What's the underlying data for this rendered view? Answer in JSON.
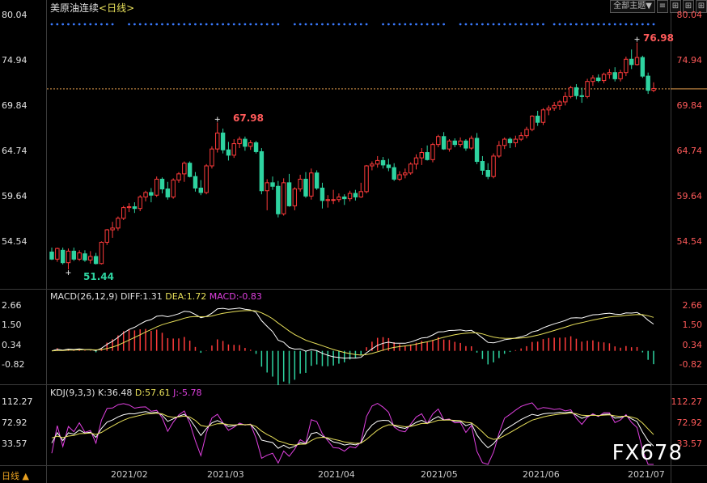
{
  "header": {
    "symbol": "美原油连续",
    "period": "<日线>",
    "toolbar_theme": "全部主题▼",
    "toolbar_icons": [
      "list-icon",
      "grid-icon",
      "grid-icon",
      "grid-icon"
    ]
  },
  "footer": {
    "period_button": "日线 ▲",
    "watermark": "FX678"
  },
  "colors": {
    "up": "#ff3b3b",
    "down": "#2ed3a0",
    "price_line": "#e8a050",
    "dots": "#3a7aff",
    "diff": "#ffffff",
    "dea": "#e8e05a",
    "k": "#ffffff",
    "d": "#e8e05a",
    "j": "#e040e0"
  },
  "chart_data": [
    {
      "type": "candlestick",
      "title": "美原油连续<日线>",
      "y_ticks": [
        "80.04",
        "74.94",
        "69.84",
        "64.74",
        "59.64",
        "54.54"
      ],
      "ylim": [
        50.5,
        80.04
      ],
      "x_ticks": [
        "2021/02",
        "2021/03",
        "2021/04",
        "2021/05",
        "2021/06",
        "2021/07"
      ],
      "current_price": 71.76,
      "annotations": [
        {
          "label": "51.44",
          "type": "low"
        },
        {
          "label": "67.98",
          "type": "high"
        },
        {
          "label": "76.98",
          "type": "high"
        }
      ],
      "candles": [
        [
          53.4,
          53.9,
          52.5,
          52.6
        ],
        [
          52.6,
          53.9,
          52.3,
          53.8
        ],
        [
          53.6,
          53.9,
          52.0,
          52.2
        ],
        [
          52.2,
          53.8,
          51.44,
          53.5
        ],
        [
          53.5,
          53.9,
          52.4,
          52.6
        ],
        [
          52.6,
          53.6,
          52.4,
          53.3
        ],
        [
          53.2,
          53.6,
          52.3,
          52.5
        ],
        [
          52.5,
          53.5,
          52.1,
          52.9
        ],
        [
          52.9,
          53.3,
          52.0,
          52.1
        ],
        [
          52.1,
          54.6,
          52.0,
          54.5
        ],
        [
          54.5,
          56.0,
          54.2,
          55.9
        ],
        [
          55.9,
          56.8,
          55.0,
          56.1
        ],
        [
          56.1,
          57.4,
          55.8,
          57.2
        ],
        [
          57.2,
          58.6,
          57.0,
          58.4
        ],
        [
          58.4,
          58.9,
          57.9,
          58.5
        ],
        [
          58.5,
          59.0,
          57.8,
          58.3
        ],
        [
          58.3,
          59.8,
          58.0,
          59.6
        ],
        [
          59.6,
          60.3,
          59.1,
          60.1
        ],
        [
          60.1,
          60.6,
          59.0,
          59.8
        ],
        [
          59.8,
          61.9,
          59.6,
          61.6
        ],
        [
          61.6,
          61.8,
          60.0,
          60.5
        ],
        [
          60.5,
          61.3,
          59.3,
          59.6
        ],
        [
          59.6,
          61.7,
          59.4,
          61.5
        ],
        [
          61.5,
          62.4,
          61.2,
          62.2
        ],
        [
          62.2,
          63.6,
          61.3,
          63.4
        ],
        [
          63.4,
          63.6,
          61.8,
          61.9
        ],
        [
          61.9,
          62.4,
          60.2,
          60.6
        ],
        [
          60.6,
          61.5,
          59.8,
          60.1
        ],
        [
          60.1,
          63.3,
          59.9,
          63.1
        ],
        [
          63.1,
          65.3,
          62.8,
          65.0
        ],
        [
          65.0,
          67.98,
          64.6,
          66.8
        ],
        [
          66.8,
          67.3,
          64.5,
          64.9
        ],
        [
          64.9,
          65.8,
          63.7,
          64.3
        ],
        [
          64.3,
          66.1,
          64.0,
          65.6
        ],
        [
          65.6,
          66.4,
          65.1,
          66.1
        ],
        [
          66.1,
          66.4,
          64.8,
          65.3
        ],
        [
          65.3,
          66.0,
          64.9,
          65.7
        ],
        [
          65.7,
          65.9,
          64.5,
          64.7
        ],
        [
          64.7,
          65.1,
          59.9,
          60.3
        ],
        [
          60.3,
          61.6,
          58.1,
          61.2
        ],
        [
          61.2,
          61.9,
          60.4,
          60.8
        ],
        [
          60.8,
          61.4,
          57.3,
          57.7
        ],
        [
          57.7,
          61.7,
          57.5,
          61.2
        ],
        [
          61.2,
          62.2,
          58.5,
          58.6
        ],
        [
          58.6,
          60.7,
          58.1,
          60.5
        ],
        [
          60.5,
          62.1,
          60.2,
          61.6
        ],
        [
          61.6,
          62.4,
          59.5,
          59.7
        ],
        [
          59.7,
          62.8,
          59.3,
          62.3
        ],
        [
          62.3,
          62.6,
          60.4,
          60.6
        ],
        [
          60.6,
          61.2,
          58.3,
          59.2
        ],
        [
          59.2,
          59.8,
          58.4,
          59.3
        ],
        [
          59.3,
          60.4,
          58.8,
          59.3
        ],
        [
          59.3,
          60.0,
          59.0,
          59.6
        ],
        [
          59.6,
          59.9,
          58.7,
          59.4
        ],
        [
          59.4,
          60.3,
          59.1,
          60.0
        ],
        [
          60.0,
          60.4,
          59.2,
          59.6
        ],
        [
          59.6,
          61.2,
          59.5,
          60.2
        ],
        [
          60.2,
          63.2,
          60.0,
          63.1
        ],
        [
          63.1,
          63.6,
          62.6,
          63.3
        ],
        [
          63.3,
          64.2,
          62.9,
          63.7
        ],
        [
          63.7,
          64.1,
          62.8,
          63.2
        ],
        [
          63.2,
          63.9,
          62.5,
          62.9
        ],
        [
          62.9,
          63.4,
          61.4,
          61.6
        ],
        [
          61.6,
          62.5,
          61.4,
          62.1
        ],
        [
          62.1,
          62.8,
          61.7,
          62.3
        ],
        [
          62.3,
          63.5,
          62.1,
          63.3
        ],
        [
          63.3,
          64.4,
          62.7,
          64.0
        ],
        [
          64.0,
          65.1,
          63.2,
          64.6
        ],
        [
          64.6,
          65.4,
          63.7,
          63.8
        ],
        [
          63.8,
          65.7,
          63.5,
          65.5
        ],
        [
          65.5,
          66.6,
          65.2,
          66.4
        ],
        [
          66.4,
          66.9,
          64.9,
          65.0
        ],
        [
          65.0,
          66.1,
          64.7,
          65.9
        ],
        [
          65.9,
          66.2,
          65.2,
          65.5
        ],
        [
          65.5,
          66.3,
          65.2,
          65.9
        ],
        [
          65.9,
          66.1,
          64.8,
          65.1
        ],
        [
          65.1,
          66.5,
          64.9,
          66.2
        ],
        [
          66.2,
          66.8,
          63.3,
          63.6
        ],
        [
          63.6,
          64.2,
          62.1,
          62.6
        ],
        [
          62.6,
          63.4,
          61.6,
          61.9
        ],
        [
          61.9,
          64.5,
          61.7,
          64.2
        ],
        [
          64.2,
          65.9,
          64.0,
          65.4
        ],
        [
          65.4,
          66.3,
          65.0,
          66.1
        ],
        [
          66.1,
          66.3,
          65.1,
          65.7
        ],
        [
          65.7,
          66.5,
          65.2,
          66.1
        ],
        [
          66.1,
          66.9,
          65.9,
          66.5
        ],
        [
          66.5,
          67.5,
          66.2,
          67.2
        ],
        [
          67.2,
          68.8,
          67.0,
          68.7
        ],
        [
          68.7,
          69.3,
          67.6,
          68.0
        ],
        [
          68.0,
          69.6,
          67.7,
          69.4
        ],
        [
          69.4,
          69.9,
          68.8,
          69.6
        ],
        [
          69.6,
          70.3,
          69.3,
          69.9
        ],
        [
          69.9,
          70.5,
          69.4,
          70.3
        ],
        [
          70.3,
          71.4,
          69.9,
          70.9
        ],
        [
          70.9,
          72.1,
          70.7,
          71.9
        ],
        [
          71.9,
          72.3,
          70.6,
          71.0
        ],
        [
          71.0,
          71.9,
          70.2,
          70.9
        ],
        [
          70.9,
          72.9,
          70.7,
          72.6
        ],
        [
          72.6,
          73.3,
          72.1,
          73.0
        ],
        [
          73.0,
          73.4,
          72.5,
          72.7
        ],
        [
          72.7,
          73.6,
          72.4,
          73.4
        ],
        [
          73.4,
          74.0,
          72.9,
          73.6
        ],
        [
          73.6,
          74.2,
          72.6,
          72.9
        ],
        [
          72.9,
          73.9,
          72.6,
          73.6
        ],
        [
          73.6,
          75.4,
          73.2,
          75.1
        ],
        [
          75.1,
          76.2,
          74.0,
          74.5
        ],
        [
          74.5,
          76.98,
          74.4,
          75.3
        ],
        [
          75.3,
          75.5,
          73.0,
          73.2
        ],
        [
          73.2,
          73.6,
          71.2,
          71.6
        ],
        [
          71.6,
          72.5,
          71.4,
          71.8
        ]
      ]
    },
    {
      "type": "line",
      "title": "MACD(26,12,9)",
      "legend": {
        "diff": "DIFF:1.31",
        "dea": "DEA:1.72",
        "macd": "MACD:-0.83"
      },
      "y_ticks": [
        "2.66",
        "1.50",
        "0.34",
        "-0.82"
      ],
      "ylim": [
        -2.2,
        2.9
      ]
    },
    {
      "type": "line",
      "title": "KDJ(9,3,3)",
      "legend": {
        "k": "K:36.48",
        "d": "D:57.61",
        "j": "J:-5.78"
      },
      "y_ticks": [
        "112.27",
        "72.92",
        "33.57"
      ],
      "ylim": [
        -10,
        130
      ]
    }
  ]
}
